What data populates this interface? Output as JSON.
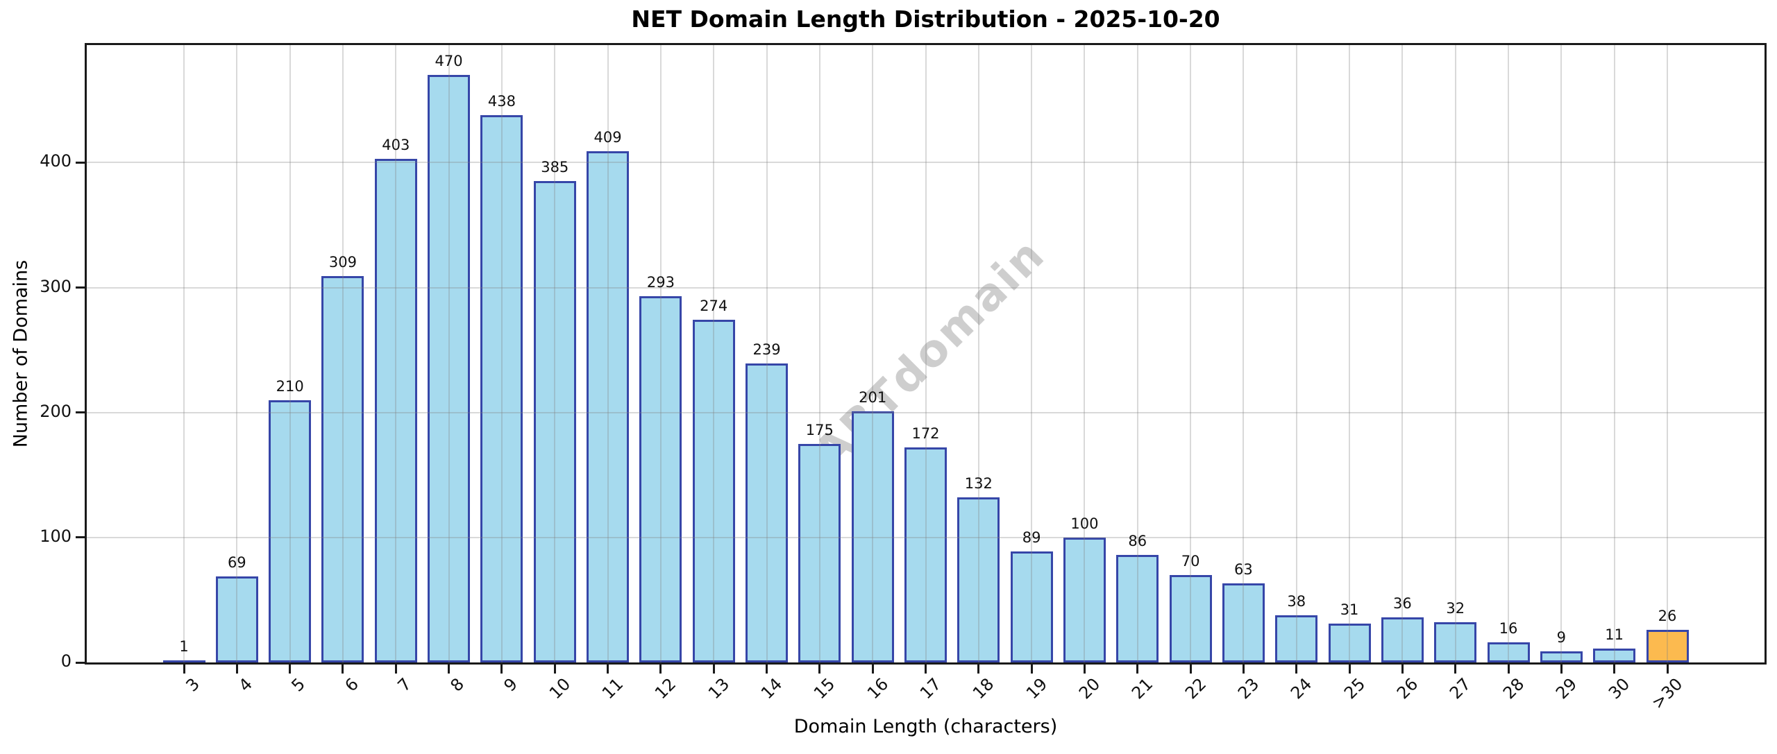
{
  "chart_data": {
    "type": "bar",
    "title": "NET Domain Length Distribution - 2025-10-20",
    "xlabel": "Domain Length (characters)",
    "ylabel": "Number of Domains",
    "categories": [
      "3",
      "4",
      "5",
      "6",
      "7",
      "8",
      "9",
      "10",
      "11",
      "12",
      "13",
      "14",
      "15",
      "16",
      "17",
      "18",
      "19",
      "20",
      "21",
      "22",
      "23",
      "24",
      "25",
      "26",
      "27",
      "28",
      "29",
      "30",
      ">30"
    ],
    "values": [
      1,
      69,
      210,
      309,
      403,
      470,
      438,
      385,
      409,
      293,
      274,
      239,
      175,
      201,
      172,
      132,
      89,
      100,
      86,
      70,
      63,
      38,
      31,
      36,
      32,
      16,
      9,
      11,
      26
    ],
    "bar_labels_shown": true,
    "yticks": [
      0,
      100,
      200,
      300,
      400
    ],
    "ylim": [
      0,
      494
    ],
    "grid": true,
    "legend": "none",
    "bar_fill_color": "#a6daee",
    "bar_edge_color": "#3646a8",
    "highlight_category": ">30",
    "highlight_fill_color": "#fcba4f",
    "watermark": "ABTdomain"
  }
}
